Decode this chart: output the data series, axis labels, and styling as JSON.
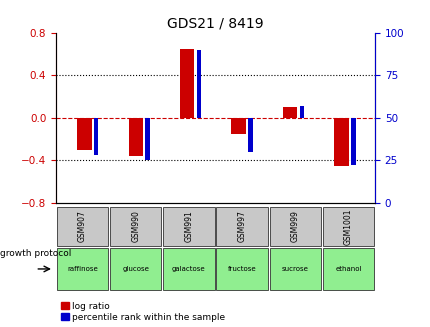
{
  "title": "GDS21 / 8419",
  "samples": [
    "GSM907",
    "GSM990",
    "GSM991",
    "GSM997",
    "GSM999",
    "GSM1001"
  ],
  "log_ratios": [
    -0.3,
    -0.36,
    0.65,
    -0.15,
    0.1,
    -0.45
  ],
  "percentile_ranks": [
    28,
    25,
    90,
    30,
    57,
    22
  ],
  "protocols": [
    "raffinose",
    "glucose",
    "galactose",
    "fructose",
    "sucrose",
    "ethanol"
  ],
  "left_ylim": [
    -0.8,
    0.8
  ],
  "right_ylim": [
    0,
    100
  ],
  "left_yticks": [
    -0.8,
    -0.4,
    0,
    0.4,
    0.8
  ],
  "right_yticks": [
    0,
    25,
    50,
    75,
    100
  ],
  "red_color": "#CC0000",
  "blue_color": "#0000CC",
  "bg_color": "#FFFFFF",
  "protocol_bg": "#90EE90",
  "sample_bg": "#C8C8C8",
  "title_color": "#000000",
  "zero_line_color": "#CC0000",
  "dotted_line_color": "#000000",
  "legend_red_label": "log ratio",
  "legend_blue_label": "percentile rank within the sample",
  "growth_protocol_label": "growth protocol"
}
